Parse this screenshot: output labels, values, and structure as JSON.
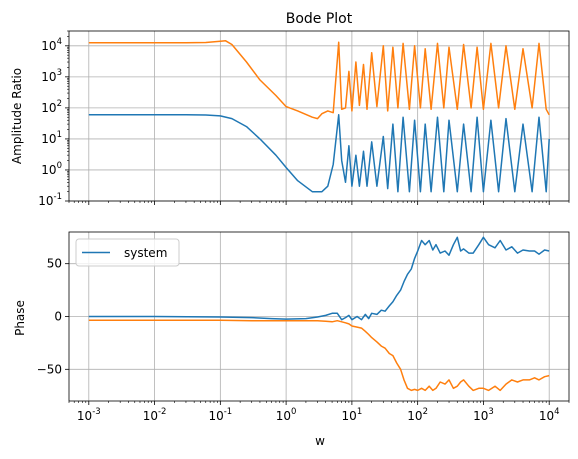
{
  "chart_data": [
    {
      "type": "line",
      "title": "Bode Plot",
      "xlabel": "",
      "ylabel": "Amplitude Ratio",
      "xscale": "log",
      "yscale": "log",
      "xlim": [
        0.0005,
        20000
      ],
      "ylim": [
        0.1,
        30000
      ],
      "grid": true,
      "x_tick_labels": [
        "10^-3",
        "10^-2",
        "10^-1",
        "10^0",
        "10^1",
        "10^2",
        "10^3",
        "10^4"
      ],
      "y_tick_labels": [
        "10^-1",
        "10^0",
        "10^1",
        "10^2",
        "10^3",
        "10^4"
      ],
      "series": [
        {
          "color": "#1f77b4",
          "x": [
            0.001,
            0.01,
            0.03,
            0.06,
            0.1,
            0.15,
            0.25,
            0.4,
            0.7,
            1.0,
            1.5,
            2.5,
            3.5,
            4.3,
            5.2,
            6.3,
            7.0,
            8.0,
            9.0,
            10.0,
            11.5,
            13.0,
            15.0,
            17.0,
            20.0,
            24.0,
            30.0,
            35.0,
            42.0,
            50.0,
            60.0,
            75.0,
            90.0,
            110.0,
            130.0,
            160.0,
            200.0,
            250.0,
            300.0,
            400.0,
            500.0,
            650.0,
            800.0,
            1000.0,
            1300.0,
            1700.0,
            2200.0,
            3000.0,
            4000.0,
            5500.0,
            7000.0,
            9000.0,
            10000.0
          ],
          "y": [
            60,
            60,
            60,
            59,
            55,
            45,
            25,
            10,
            3,
            1.2,
            0.45,
            0.2,
            0.2,
            0.3,
            1.5,
            60,
            2,
            0.4,
            6,
            0.3,
            3,
            0.3,
            4,
            0.3,
            8,
            0.3,
            12,
            0.25,
            30,
            0.2,
            50,
            0.2,
            40,
            0.2,
            30,
            0.2,
            50,
            0.2,
            40,
            0.2,
            30,
            0.2,
            50,
            0.2,
            40,
            0.2,
            45,
            0.2,
            30,
            0.2,
            50,
            0.2,
            10
          ]
        },
        {
          "color": "#ff7f0e",
          "x": [
            0.001,
            0.01,
            0.03,
            0.06,
            0.1,
            0.12,
            0.15,
            0.25,
            0.4,
            0.7,
            1.0,
            1.5,
            2.5,
            3.0,
            3.5,
            4.3,
            5.2,
            6.3,
            7.0,
            8.0,
            9.0,
            10.0,
            11.5,
            13.0,
            15.0,
            17.0,
            20.0,
            24.0,
            30.0,
            35.0,
            42.0,
            50.0,
            60.0,
            75.0,
            90.0,
            110.0,
            130.0,
            160.0,
            200.0,
            250.0,
            300.0,
            400.0,
            500.0,
            650.0,
            800.0,
            1000.0,
            1300.0,
            1700.0,
            2200.0,
            3000.0,
            4000.0,
            5500.0,
            7000.0,
            9000.0,
            10000.0
          ],
          "y": [
            12500,
            12500,
            12600,
            12800,
            14000,
            14500,
            11000,
            3000,
            800,
            250,
            110,
            80,
            50,
            45,
            65,
            80,
            70,
            13000,
            90,
            100,
            1500,
            80,
            3000,
            120,
            2500,
            90,
            6000,
            110,
            10000,
            80,
            9000,
            100,
            12000,
            90,
            10000,
            100,
            8000,
            90,
            12000,
            100,
            9000,
            90,
            11000,
            100,
            9000,
            90,
            12000,
            100,
            10000,
            90,
            8000,
            100,
            12000,
            90,
            60
          ]
        }
      ]
    },
    {
      "type": "line",
      "title": "",
      "xlabel": "w",
      "ylabel": "Phase",
      "xscale": "log",
      "xlim": [
        0.0005,
        20000
      ],
      "ylim": [
        -80,
        80
      ],
      "grid": true,
      "x_tick_labels": [
        "10^-3",
        "10^-2",
        "10^-1",
        "10^0",
        "10^1",
        "10^2",
        "10^3",
        "10^4"
      ],
      "y_ticks": [
        -50,
        0,
        50
      ],
      "legend": {
        "entries": [
          "system"
        ],
        "placement": "upper left"
      },
      "series": [
        {
          "name": "system",
          "color": "#1f77b4",
          "x": [
            0.001,
            0.01,
            0.1,
            0.3,
            0.6,
            1.0,
            2.0,
            3.0,
            4.0,
            5.0,
            6.0,
            7.0,
            8.0,
            9.0,
            10.0,
            12.0,
            14.0,
            16.0,
            18.0,
            20.0,
            24.0,
            28.0,
            32.0,
            37.0,
            42.0,
            48.0,
            55.0,
            62.0,
            70.0,
            80.0,
            90.0,
            100.0,
            115.0,
            130.0,
            150.0,
            170.0,
            190.0,
            220.0,
            260.0,
            300.0,
            350.0,
            400.0,
            450.0,
            500.0,
            600.0,
            700.0,
            850.0,
            1000.0,
            1200.0,
            1500.0,
            1800.0,
            2200.0,
            2700.0,
            3300.0,
            4000.0,
            5000.0,
            6000.0,
            7000.0,
            8500.0,
            10000.0
          ],
          "y": [
            0,
            0,
            -0.5,
            -1,
            -2,
            -2.5,
            -2,
            -0.5,
            1,
            3,
            3,
            -3,
            -1,
            1,
            -3,
            0,
            -3,
            2,
            -2,
            3,
            2,
            6,
            5,
            10,
            14,
            20,
            25,
            33,
            40,
            45,
            55,
            62,
            72,
            68,
            72,
            63,
            68,
            60,
            62,
            58,
            68,
            75,
            62,
            64,
            60,
            60,
            68,
            75,
            68,
            65,
            72,
            63,
            66,
            60,
            63,
            62,
            62,
            59,
            63,
            62
          ]
        },
        {
          "color": "#ff7f0e",
          "x": [
            0.001,
            0.01,
            0.1,
            0.3,
            0.6,
            1.0,
            2.0,
            3.0,
            4.0,
            5.0,
            6.0,
            7.0,
            8.0,
            9.0,
            10.0,
            12.0,
            14.0,
            16.0,
            18.0,
            20.0,
            24.0,
            28.0,
            32.0,
            37.0,
            42.0,
            48.0,
            55.0,
            62.0,
            70.0,
            80.0,
            90.0,
            100.0,
            115.0,
            130.0,
            150.0,
            170.0,
            190.0,
            220.0,
            260.0,
            300.0,
            350.0,
            400.0,
            450.0,
            500.0,
            600.0,
            700.0,
            850.0,
            1000.0,
            1200.0,
            1500.0,
            1800.0,
            2200.0,
            2700.0,
            3300.0,
            4000.0,
            5000.0,
            6000.0,
            7000.0,
            8500.0,
            10000.0
          ],
          "y": [
            -3.5,
            -3.5,
            -3.5,
            -4,
            -4,
            -4,
            -4,
            -4,
            -4.5,
            -5,
            -4,
            -5,
            -6,
            -7,
            -9,
            -10,
            -11,
            -14,
            -17,
            -20,
            -24,
            -28,
            -30,
            -35,
            -37,
            -44,
            -50,
            -60,
            -68,
            -70,
            -69,
            -70,
            -68,
            -70,
            -66,
            -70,
            -68,
            -62,
            -64,
            -60,
            -68,
            -66,
            -62,
            -60,
            -66,
            -70,
            -68,
            -68,
            -70,
            -66,
            -70,
            -64,
            -60,
            -62,
            -60,
            -60,
            -58,
            -60,
            -57,
            -56
          ]
        }
      ]
    }
  ]
}
